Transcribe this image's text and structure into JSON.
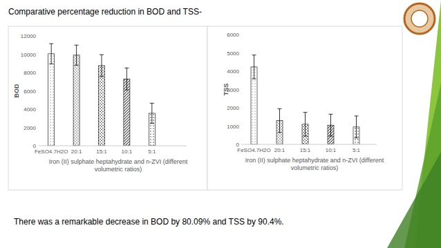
{
  "header": {
    "title": "Comparative percentage reduction in BOD and TSS-"
  },
  "footer": {
    "text": "There was a remarkable decrease in BOD by 80.09% and TSS by 90.4%."
  },
  "chart_data": [
    {
      "type": "bar",
      "x_label": "Iron (II) sulphate heptahydrate and n-ZVI (different volumetric ratios)",
      "y_label": "BOD",
      "categories": [
        "FeSO4.7H2O",
        "20:1",
        "15:1",
        "10:1",
        "5:1"
      ],
      "values": [
        10050,
        9900,
        8750,
        7300,
        3550
      ],
      "errors": [
        1100,
        1100,
        1200,
        1200,
        1100
      ],
      "color": "#404040",
      "ylim": [
        0,
        12000
      ],
      "yticks": [
        0,
        2000,
        4000,
        6000,
        8000,
        10000,
        12000
      ],
      "grid": false
    },
    {
      "type": "bar",
      "x_label": "Iron (II) sulphate heptahydrate and n-ZVI (different volumetric ratios)",
      "y_label": "TSS",
      "categories": [
        "FeSO4.7H2O",
        "20:1",
        "15:1",
        "10:1",
        "5:1"
      ],
      "values": [
        4230,
        1300,
        1100,
        1050,
        950
      ],
      "errors": [
        650,
        650,
        650,
        600,
        600
      ],
      "color": "#404040",
      "ylim": [
        0,
        6000
      ],
      "yticks": [
        0,
        1000,
        2000,
        3000,
        4000,
        5000,
        6000
      ],
      "grid": false
    }
  ]
}
